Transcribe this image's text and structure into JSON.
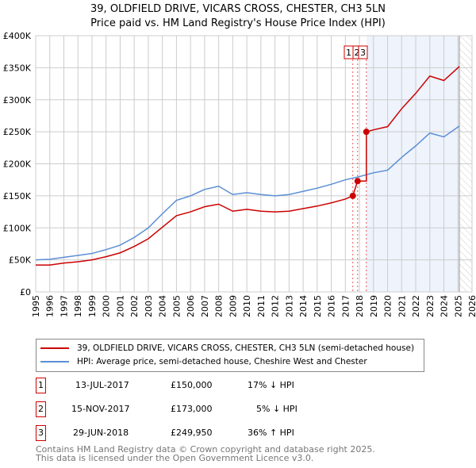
{
  "chart_data": {
    "type": "line",
    "title": "39, OLDFIELD DRIVE, VICARS CROSS, CHESTER, CH3 5LN",
    "subtitle": "Price paid vs. HM Land Registry's House Price Index (HPI)",
    "xlim": [
      1995,
      2026
    ],
    "ylim": [
      0,
      400000
    ],
    "x_ticks": [
      "1995",
      "1996",
      "1997",
      "1998",
      "1999",
      "2000",
      "2001",
      "2002",
      "2003",
      "2004",
      "2005",
      "2006",
      "2007",
      "2008",
      "2009",
      "2010",
      "2011",
      "2012",
      "2013",
      "2014",
      "2015",
      "2016",
      "2017",
      "2018",
      "2019",
      "2020",
      "2021",
      "2022",
      "2023",
      "2024",
      "2025",
      "2026"
    ],
    "y_ticks": [
      {
        "v": 0,
        "l": "£0"
      },
      {
        "v": 50000,
        "l": "£50K"
      },
      {
        "v": 100000,
        "l": "£100K"
      },
      {
        "v": 150000,
        "l": "£150K"
      },
      {
        "v": 200000,
        "l": "£200K"
      },
      {
        "v": 250000,
        "l": "£250K"
      },
      {
        "v": 300000,
        "l": "£300K"
      },
      {
        "v": 350000,
        "l": "£350K"
      },
      {
        "v": 400000,
        "l": "£400K"
      }
    ],
    "grid": true,
    "series": [
      {
        "name": "39, OLDFIELD DRIVE, VICARS CROSS, CHESTER, CH3 5LN (semi-detached house)",
        "color": "#cc0000",
        "x": [
          1995,
          1996,
          1997,
          1998,
          1999,
          2000,
          2001,
          2002,
          2003,
          2004,
          2005,
          2006,
          2007,
          2008,
          2009,
          2010,
          2011,
          2012,
          2013,
          2014,
          2015,
          2016,
          2017,
          2017.53,
          2017.87,
          2018.49,
          2018.49,
          2019,
          2020,
          2021,
          2022,
          2023,
          2024,
          2025.1
        ],
        "y": [
          42000,
          42000,
          45000,
          47000,
          50000,
          55000,
          61000,
          71000,
          83000,
          101000,
          119000,
          125000,
          133000,
          137000,
          126000,
          129000,
          126000,
          125000,
          126000,
          130000,
          134000,
          139000,
          145000,
          150000,
          173000,
          173000,
          249950,
          253000,
          258000,
          286000,
          310000,
          337000,
          330000,
          352000
        ]
      },
      {
        "name": "HPI: Average price, semi-detached house, Cheshire West and Chester",
        "color": "#5b8fd4",
        "x": [
          1995,
          1996,
          1997,
          1998,
          1999,
          2000,
          2001,
          2002,
          2003,
          2004,
          2005,
          2006,
          2007,
          2008,
          2009,
          2010,
          2011,
          2012,
          2013,
          2014,
          2015,
          2016,
          2017,
          2018,
          2019,
          2020,
          2021,
          2022,
          2023,
          2024,
          2025.1
        ],
        "y": [
          50000,
          51000,
          54000,
          57000,
          60000,
          66000,
          73000,
          85000,
          100000,
          122000,
          143000,
          150000,
          160000,
          165000,
          152000,
          155000,
          152000,
          150000,
          152000,
          157000,
          162000,
          168000,
          175000,
          180000,
          186000,
          190000,
          210000,
          228000,
          248000,
          242000,
          259000
        ]
      }
    ],
    "sales": [
      {
        "num": "1",
        "date": "13-JUL-2017",
        "x": 2017.53,
        "price": "£150,000",
        "value": 150000,
        "hpi": "17% ↓ HPI"
      },
      {
        "num": "2",
        "date": "15-NOV-2017",
        "x": 2017.87,
        "price": "£173,000",
        "value": 173000,
        "hpi": "5% ↓ HPI"
      },
      {
        "num": "3",
        "date": "29-JUN-2018",
        "x": 2018.49,
        "price": "£249,950",
        "value": 249950,
        "hpi": "36% ↑ HPI"
      }
    ],
    "forecast_start": 2025.1
  },
  "footer": [
    "Contains HM Land Registry data © Crown copyright and database right 2025.",
    "This data is licensed under the Open Government Licence v3.0."
  ]
}
